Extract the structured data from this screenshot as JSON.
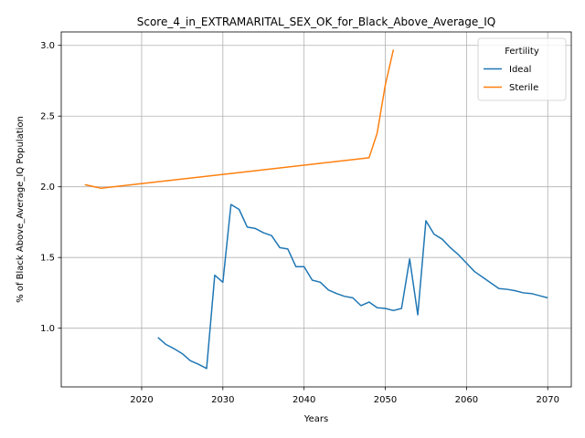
{
  "chart_data": {
    "type": "line",
    "title": "Score_4_in_EXTRAMARITAL_SEX_OK_for_Black_Above_Average_IQ",
    "xlabel": "Years",
    "ylabel": "% of Black Above_Average_IQ Population",
    "xlim": [
      2010.1,
      2072.9
    ],
    "ylim": [
      0.585,
      3.095
    ],
    "xticks": [
      2020,
      2030,
      2040,
      2050,
      2060,
      2070
    ],
    "xtick_labels": [
      "2020",
      "2030",
      "2040",
      "2050",
      "2060",
      "2070"
    ],
    "yticks": [
      1.0,
      1.5,
      2.0,
      2.5,
      3.0
    ],
    "ytick_labels": [
      "1.0",
      "1.5",
      "2.0",
      "2.5",
      "3.0"
    ],
    "grid": true,
    "legend": {
      "title": "Fertility",
      "position": "top-right"
    },
    "series": [
      {
        "name": "Ideal",
        "color": "#1f77b4",
        "x": [
          2022,
          2023,
          2024,
          2025,
          2026,
          2027,
          2028,
          2029,
          2030,
          2031,
          2032,
          2033,
          2034,
          2035,
          2036,
          2037,
          2038,
          2039,
          2040,
          2041,
          2042,
          2043,
          2044,
          2045,
          2046,
          2047,
          2048,
          2049,
          2050,
          2051,
          2052,
          2053,
          2054,
          2055,
          2056,
          2057,
          2058,
          2059,
          2060,
          2061,
          2062,
          2063,
          2064,
          2065,
          2066,
          2067,
          2068,
          2069,
          2070
        ],
        "y": [
          0.935,
          0.885,
          0.855,
          0.82,
          0.77,
          0.745,
          0.715,
          1.375,
          1.325,
          1.875,
          1.84,
          1.715,
          1.705,
          1.675,
          1.655,
          1.57,
          1.56,
          1.435,
          1.435,
          1.34,
          1.325,
          1.27,
          1.245,
          1.225,
          1.215,
          1.16,
          1.185,
          1.145,
          1.14,
          1.125,
          1.14,
          1.49,
          1.095,
          1.76,
          1.665,
          1.63,
          1.57,
          1.52,
          1.46,
          1.4,
          1.36,
          1.32,
          1.28,
          1.275,
          1.265,
          1.25,
          1.245,
          1.23,
          1.215
        ]
      },
      {
        "name": "Sterile",
        "color": "#ff7f0e",
        "x": [
          2013,
          2015,
          2048,
          2049,
          2050,
          2051
        ],
        "y": [
          2.015,
          1.99,
          2.205,
          2.38,
          2.72,
          2.97
        ]
      }
    ]
  }
}
